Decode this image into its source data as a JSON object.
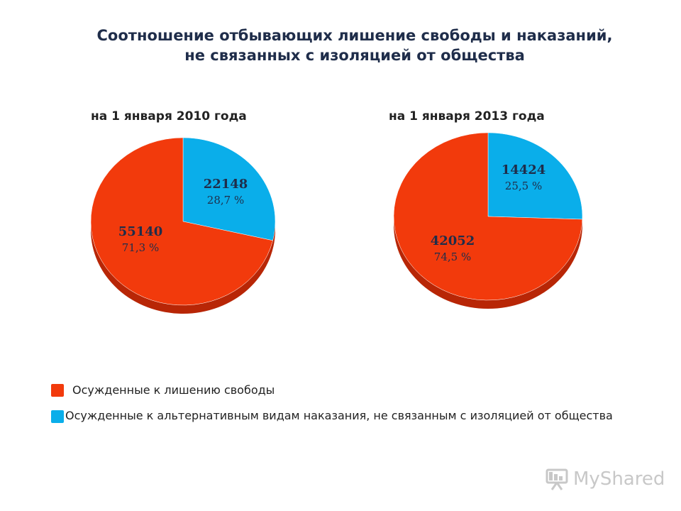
{
  "title_line1": "Соотношение отбывающих лишение свободы и наказаний,",
  "title_line2": "не связанных с изоляцией от общества",
  "colors": {
    "imprisonment": "#f23a0c",
    "imprisonment_dark": "#b82606",
    "alternative": "#0aaeea",
    "alternative_dark": "#0880b0"
  },
  "chart_data": [
    {
      "type": "pie",
      "title": "на 1 января 2010 года",
      "slices": [
        {
          "label": "Осужденные к лишению свободы",
          "value": 55140,
          "value_text": "55140",
          "percent_text": "71,3 %"
        },
        {
          "label": "Осужденные к альтернативным видам наказания, не связанным с изоляцией от общества",
          "value": 22148,
          "value_text": "22148",
          "percent_text": "28,7 %"
        }
      ]
    },
    {
      "type": "pie",
      "title": "на 1 января 2013 года",
      "slices": [
        {
          "label": "Осужденные к лишению свободы",
          "value": 42052,
          "value_text": "42052",
          "percent_text": "74,5 %"
        },
        {
          "label": "Осужденные к альтернативным видам наказания, не связанным с изоляцией от общества",
          "value": 14424,
          "value_text": "14424",
          "percent_text": "25,5 %"
        }
      ]
    }
  ],
  "legend": [
    {
      "label": "Осужденные к лишению свободы"
    },
    {
      "label": "Осужденные к альтернативным видам наказания, не связанным с изоляцией от общества"
    }
  ],
  "watermark": {
    "text": "MyShared",
    "icon": "presentation-board-icon"
  }
}
